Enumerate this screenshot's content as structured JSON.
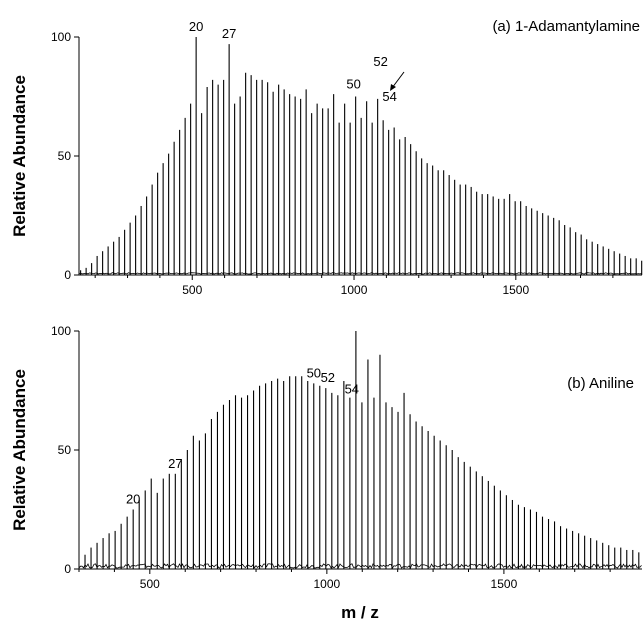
{
  "chart_data": [
    {
      "type": "bar",
      "panel_title": "(a) 1-Adamantylamine",
      "ylabel": "Relative Abundance",
      "xlabel": "",
      "xlim": [
        150,
        1890
      ],
      "ylim": [
        0,
        100
      ],
      "xticks": [
        "500",
        "1000",
        "1500"
      ],
      "xtick_values": [
        500,
        1000,
        1500
      ],
      "yticks": [
        "0",
        "50",
        "100"
      ],
      "ytick_values": [
        0,
        50,
        100
      ],
      "grid": false,
      "legend": "none",
      "cluster_base_mz": 155,
      "cluster_spacing": 17,
      "peak_index_start": 0,
      "values": [
        2,
        3,
        5,
        8,
        10,
        12,
        14,
        16,
        19,
        22,
        25,
        29,
        33,
        38,
        43,
        47,
        51,
        56,
        61,
        66,
        72,
        100,
        68,
        79,
        82,
        80,
        82,
        97,
        72,
        75,
        85,
        84,
        82,
        82,
        81,
        77,
        80,
        78,
        76,
        75,
        74,
        78,
        68,
        72,
        70,
        70,
        76,
        64,
        72,
        64,
        75,
        66,
        73,
        64,
        74,
        65,
        61,
        62,
        57,
        58,
        55,
        52,
        49,
        47,
        46,
        44,
        44,
        42,
        40,
        38,
        38,
        37,
        35,
        34,
        34,
        33,
        32,
        32,
        34,
        31,
        31,
        29,
        28,
        27,
        26,
        25,
        24,
        23,
        21,
        20,
        18,
        17,
        15,
        14,
        13,
        12,
        11,
        10,
        9,
        8,
        7,
        7,
        6
      ],
      "peak_labels": [
        {
          "text": "20",
          "index": 21
        },
        {
          "text": "27",
          "index": 27
        },
        {
          "text": "50",
          "index": 50
        },
        {
          "text": "52",
          "index": 52
        },
        {
          "text": "54",
          "index": 54
        }
      ]
    },
    {
      "type": "bar",
      "panel_title": "(b) Aniline",
      "ylabel": "Relative Abundance",
      "xlabel": "m / z",
      "xlim": [
        300,
        1890
      ],
      "ylim": [
        0,
        100
      ],
      "xticks": [
        "500",
        "1000",
        "1500"
      ],
      "xtick_values": [
        500,
        1000,
        1500
      ],
      "yticks": [
        "0",
        "50",
        "100"
      ],
      "ytick_values": [
        0,
        50,
        100
      ],
      "grid": false,
      "legend": "none",
      "cluster_base_mz": 113,
      "cluster_spacing": 17,
      "peak_index_start": 12,
      "values": [
        6,
        9,
        11,
        13,
        15,
        16,
        19,
        22,
        25,
        29,
        33,
        38,
        32,
        38,
        40,
        40,
        46,
        50,
        56,
        54,
        57,
        63,
        66,
        69,
        71,
        73,
        72,
        73,
        75,
        77,
        78,
        79,
        80,
        79,
        81,
        81,
        81,
        79,
        78,
        77,
        76,
        74,
        73,
        79,
        72,
        100,
        70,
        88,
        72,
        90,
        70,
        68,
        66,
        74,
        65,
        62,
        60,
        58,
        56,
        54,
        52,
        50,
        47,
        45,
        43,
        41,
        39,
        37,
        35,
        33,
        31,
        29,
        27,
        26,
        25,
        24,
        22,
        21,
        20,
        18,
        17,
        16,
        15,
        14,
        13,
        12,
        11,
        10,
        9,
        9,
        8,
        8,
        7
      ],
      "peak_labels": [
        {
          "text": "20",
          "index": 20
        },
        {
          "text": "27",
          "index": 27
        },
        {
          "text": "50",
          "index": 50
        },
        {
          "text": "52",
          "index": 52
        },
        {
          "text": "54",
          "index": 54
        }
      ]
    }
  ]
}
